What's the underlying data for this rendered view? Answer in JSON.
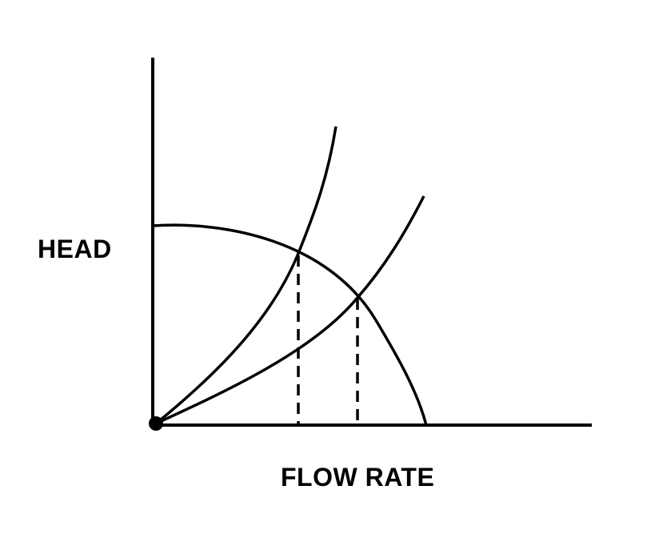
{
  "labels": {
    "y_axis": "HEAD",
    "x_axis": "FLOW RATE"
  },
  "colors": {
    "background": "#ffffff",
    "stroke": "#000000"
  }
}
